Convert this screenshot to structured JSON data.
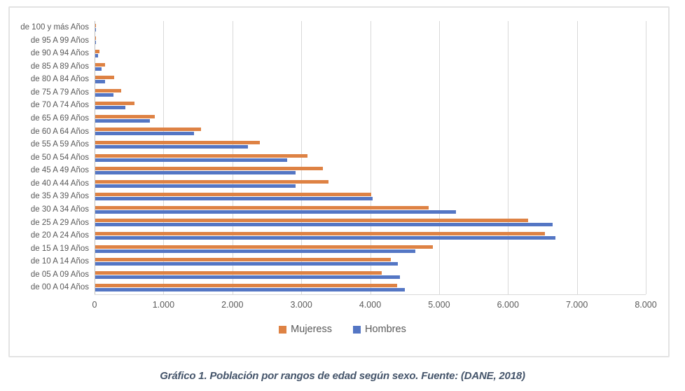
{
  "caption": "Gráfico 1. Población por rangos de edad según sexo. Fuente: (DANE, 2018)",
  "chart_data": {
    "type": "bar",
    "orientation": "horizontal",
    "title": "",
    "xlabel": "",
    "ylabel": "",
    "grid": true,
    "legend_position": "bottom",
    "categories": [
      "de 100 y más Años",
      "de 95 A 99 Años",
      "de 90 A 94 Años",
      "de 85 A 89 Años",
      "de 80 A 84 Años",
      "de 75 A 79 Años",
      "de 70 A 74 Años",
      "de 65 A 69 Años",
      "de 60 A 64 Años",
      "de 55 A 59 Años",
      "de 50 A 54 Años",
      "de 45 A 49 Años",
      "de 40 A 44 Años",
      "de 35 A 39 Años",
      "de 30 A 34 Años",
      "de 25 A 29 Años",
      "de 20 A 24 Años",
      "de 15 A 19 Años",
      "de 10 A 14 Años",
      "de 05 A 09 Años",
      "de 00 A 04 Años"
    ],
    "series": [
      {
        "name": "Mujeress",
        "color": "#de8244",
        "values": [
          5,
          15,
          65,
          140,
          270,
          380,
          570,
          865,
          1530,
          2385,
          3085,
          3300,
          3385,
          4010,
          4840,
          6280,
          6530,
          4900,
          4290,
          4160,
          4380
        ]
      },
      {
        "name": "Hombres",
        "color": "#5476c4",
        "values": [
          2,
          8,
          40,
          90,
          145,
          265,
          440,
          790,
          1430,
          2215,
          2785,
          2910,
          2910,
          4030,
          5230,
          6640,
          6680,
          4650,
          4390,
          4420,
          4490
        ]
      }
    ],
    "x_axis": {
      "min": 0,
      "max": 8000,
      "tick_step": 1000,
      "tick_labels": [
        "0",
        "1.000",
        "2.000",
        "3.000",
        "4.000",
        "5.000",
        "6.000",
        "7.000",
        "8.000"
      ]
    }
  }
}
